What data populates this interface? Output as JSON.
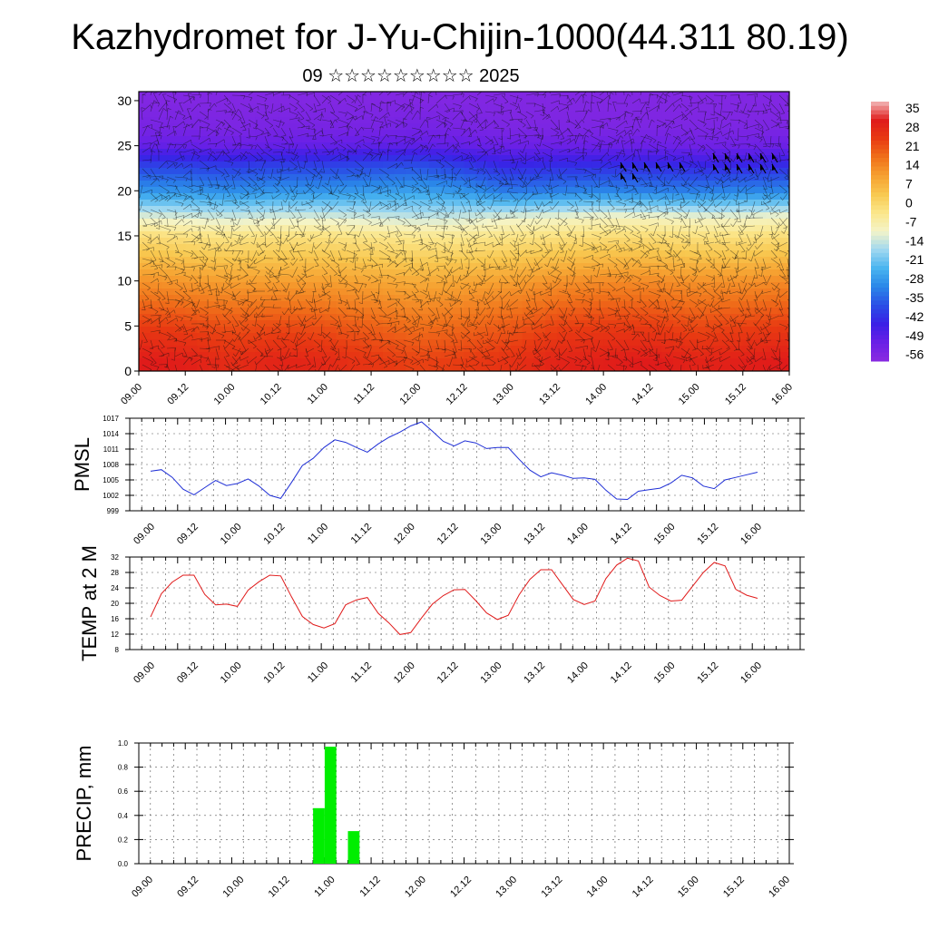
{
  "header": {
    "title": "Kazhydromet for J-Yu-Chijin-1000(44.311 80.19)",
    "subtitle": "09 ☆☆☆☆☆☆☆☆☆ 2025"
  },
  "colors": {
    "pmsl_line": "#1f2fd6",
    "temp_line": "#e01a1a",
    "precip_bar": "#00ee00",
    "colorbar": [
      "#f2b8b8",
      "#e01a1a",
      "#e83a12",
      "#f0701a",
      "#f6a030",
      "#f8c850",
      "#fbe68a",
      "#f4f4c8",
      "#a0d8f0",
      "#48b4f0",
      "#2a86e8",
      "#2a4ee6",
      "#3a20e6",
      "#6a20e6",
      "#8a2ae0"
    ]
  },
  "chart_data": [
    {
      "type": "heatmap",
      "title": "",
      "xlabel": "",
      "ylabel": "",
      "x_ticks": [
        "09.00",
        "09.12",
        "10.00",
        "10.12",
        "11.00",
        "11.12",
        "12.00",
        "12.12",
        "13.00",
        "13.12",
        "14.00",
        "14.12",
        "15.00",
        "15.12",
        "16.00"
      ],
      "y_ticks": [
        "0",
        "5",
        "10",
        "15",
        "20",
        "25",
        "30"
      ],
      "ylim": [
        0,
        31
      ],
      "colorbar_labels": [
        "35",
        "28",
        "21",
        "14",
        "7",
        "0",
        "-7",
        "-14",
        "-21",
        "-28",
        "-35",
        "-42",
        "-49",
        "-56"
      ],
      "colorbar_range": [
        -60,
        38
      ],
      "overlay": "wind barbs",
      "layers": [
        {
          "y": 1,
          "values": [
            31,
            30,
            27,
            29,
            28,
            25,
            23,
            24,
            26,
            29,
            30,
            31,
            29,
            30,
            31
          ]
        },
        {
          "y": 5,
          "values": [
            24,
            23,
            21,
            22,
            21,
            19,
            17,
            18,
            20,
            23,
            24,
            24,
            22,
            23,
            24
          ]
        },
        {
          "y": 10,
          "values": [
            12,
            11,
            10,
            10,
            10,
            9,
            8,
            9,
            10,
            12,
            13,
            13,
            12,
            12,
            13
          ]
        },
        {
          "y": 15,
          "values": [
            -2,
            -3,
            -4,
            -3,
            -3,
            -4,
            -5,
            -5,
            -4,
            -3,
            -2,
            -2,
            -3,
            -3,
            -2
          ]
        },
        {
          "y": 17,
          "values": [
            -12,
            -13,
            -14,
            -13,
            -13,
            -14,
            -15,
            -14,
            -12,
            -11,
            -10,
            -10,
            -11,
            -11,
            -10
          ]
        },
        {
          "y": 20,
          "values": [
            -30,
            -30,
            -31,
            -30,
            -30,
            -29,
            -28,
            -30,
            -34,
            -33,
            -32,
            -33,
            -33,
            -32,
            -32
          ]
        },
        {
          "y": 23,
          "values": [
            -42,
            -42,
            -43,
            -42,
            -42,
            -41,
            -40,
            -43,
            -46,
            -45,
            -45,
            -45,
            -46,
            -46,
            -45
          ]
        },
        {
          "y": 25,
          "values": [
            -52,
            -52,
            -53,
            -52,
            -52,
            -51,
            -51,
            -52,
            -53,
            -53,
            -53,
            -53,
            -54,
            -54,
            -53
          ]
        },
        {
          "y": 27,
          "values": [
            -56,
            -56,
            -57,
            -56,
            -56,
            -56,
            -55,
            -56,
            -57,
            -57,
            -57,
            -57,
            -57,
            -57,
            -57
          ]
        },
        {
          "y": 30,
          "values": [
            -58,
            -58,
            -58,
            -58,
            -58,
            -58,
            -58,
            -58,
            -58,
            -58,
            -58,
            -58,
            -58,
            -58,
            -58
          ]
        }
      ]
    },
    {
      "type": "line",
      "ylabel": "PMSL",
      "xlabel": "",
      "title": "",
      "ylim": [
        999,
        1017
      ],
      "y_ticks": [
        "1017",
        "1014",
        "1011",
        "1008",
        "1005",
        "1002",
        "999"
      ],
      "x_ticks": [
        "09.00",
        "09.12",
        "10.00",
        "10.12",
        "11.00",
        "11.12",
        "12.00",
        "12.12",
        "13.00",
        "13.12",
        "14.00",
        "14.12",
        "15.00",
        "15.12",
        "16.00"
      ],
      "x_hours": [
        0,
        3,
        6,
        9,
        12,
        15,
        18,
        21,
        24,
        27,
        30,
        33,
        36,
        39,
        42,
        45,
        48,
        51,
        54,
        57,
        60,
        63,
        66,
        69,
        72,
        75,
        78,
        81,
        84,
        87,
        90,
        93,
        96,
        99,
        102,
        105,
        108,
        111,
        114,
        117,
        120,
        123,
        126,
        129,
        132,
        135,
        138,
        141,
        144,
        147,
        150,
        153,
        156,
        159,
        162,
        165,
        168
      ],
      "values": [
        1006.7,
        1007.0,
        1005.5,
        1003.2,
        1002.1,
        1003.5,
        1004.9,
        1003.9,
        1004.3,
        1005.2,
        1003.8,
        1002.0,
        1001.4,
        1004.5,
        1007.8,
        1009.2,
        1011.3,
        1012.8,
        1012.3,
        1011.3,
        1010.4,
        1012.0,
        1013.3,
        1014.3,
        1015.5,
        1016.3,
        1014.5,
        1012.5,
        1011.6,
        1012.6,
        1012.2,
        1011.1,
        1011.3,
        1011.3,
        1009.0,
        1006.9,
        1005.6,
        1006.4,
        1005.9,
        1005.3,
        1005.4,
        1005.1,
        1003.0,
        1001.3,
        1001.2,
        1002.8,
        1003.1,
        1003.4,
        1004.4,
        1005.9,
        1005.4,
        1003.8,
        1003.3,
        1005.0,
        1005.5,
        1006.0,
        1006.5
      ]
    },
    {
      "type": "line",
      "ylabel": "TEMP at 2 M",
      "xlabel": "",
      "title": "",
      "ylim": [
        8,
        32
      ],
      "y_ticks": [
        "32",
        "28",
        "24",
        "20",
        "16",
        "12",
        "8"
      ],
      "x_ticks": [
        "09.00",
        "09.12",
        "10.00",
        "10.12",
        "11.00",
        "11.12",
        "12.00",
        "12.12",
        "13.00",
        "13.12",
        "14.00",
        "14.12",
        "15.00",
        "15.12",
        "16.00"
      ],
      "x_hours": [
        0,
        3,
        6,
        9,
        12,
        15,
        18,
        21,
        24,
        27,
        30,
        33,
        36,
        39,
        42,
        45,
        48,
        51,
        54,
        57,
        60,
        63,
        66,
        69,
        72,
        75,
        78,
        81,
        84,
        87,
        90,
        93,
        96,
        99,
        102,
        105,
        108,
        111,
        114,
        117,
        120,
        123,
        126,
        129,
        132,
        135,
        138,
        141,
        144,
        147,
        150,
        153,
        156,
        159,
        162,
        165,
        168
      ],
      "values": [
        16.5,
        22.5,
        25.5,
        27.3,
        27.3,
        22.3,
        19.6,
        19.8,
        19.2,
        23.4,
        25.6,
        27.3,
        27.1,
        21.7,
        16.6,
        14.5,
        13.6,
        14.7,
        19.6,
        20.9,
        21.5,
        17.4,
        14.9,
        11.9,
        12.4,
        16.2,
        19.8,
        22.0,
        23.5,
        23.6,
        20.7,
        17.5,
        15.8,
        16.9,
        22.2,
        26.2,
        28.7,
        28.7,
        24.8,
        21.0,
        19.7,
        20.6,
        26.4,
        29.9,
        31.7,
        31.0,
        24.2,
        22.0,
        20.6,
        20.8,
        24.4,
        28.0,
        30.6,
        29.7,
        23.6,
        22.1,
        21.3
      ]
    },
    {
      "type": "bar",
      "ylabel": "PRECIP, mm",
      "xlabel": "",
      "title": "",
      "ylim": [
        0,
        1.0
      ],
      "y_ticks": [
        "1.0",
        "0.8",
        "0.6",
        "0.4",
        "0.2",
        "0.0"
      ],
      "x_ticks": [
        "09.00",
        "09.12",
        "10.00",
        "10.12",
        "11.00",
        "11.12",
        "12.00",
        "12.12",
        "13.00",
        "13.12",
        "14.00",
        "14.12",
        "15.00",
        "15.12",
        "16.00"
      ],
      "bars": [
        {
          "x_hour": 46.5,
          "value": 0.46
        },
        {
          "x_hour": 49.5,
          "value": 0.97
        },
        {
          "x_hour": 55.5,
          "value": 0.27
        }
      ]
    }
  ]
}
